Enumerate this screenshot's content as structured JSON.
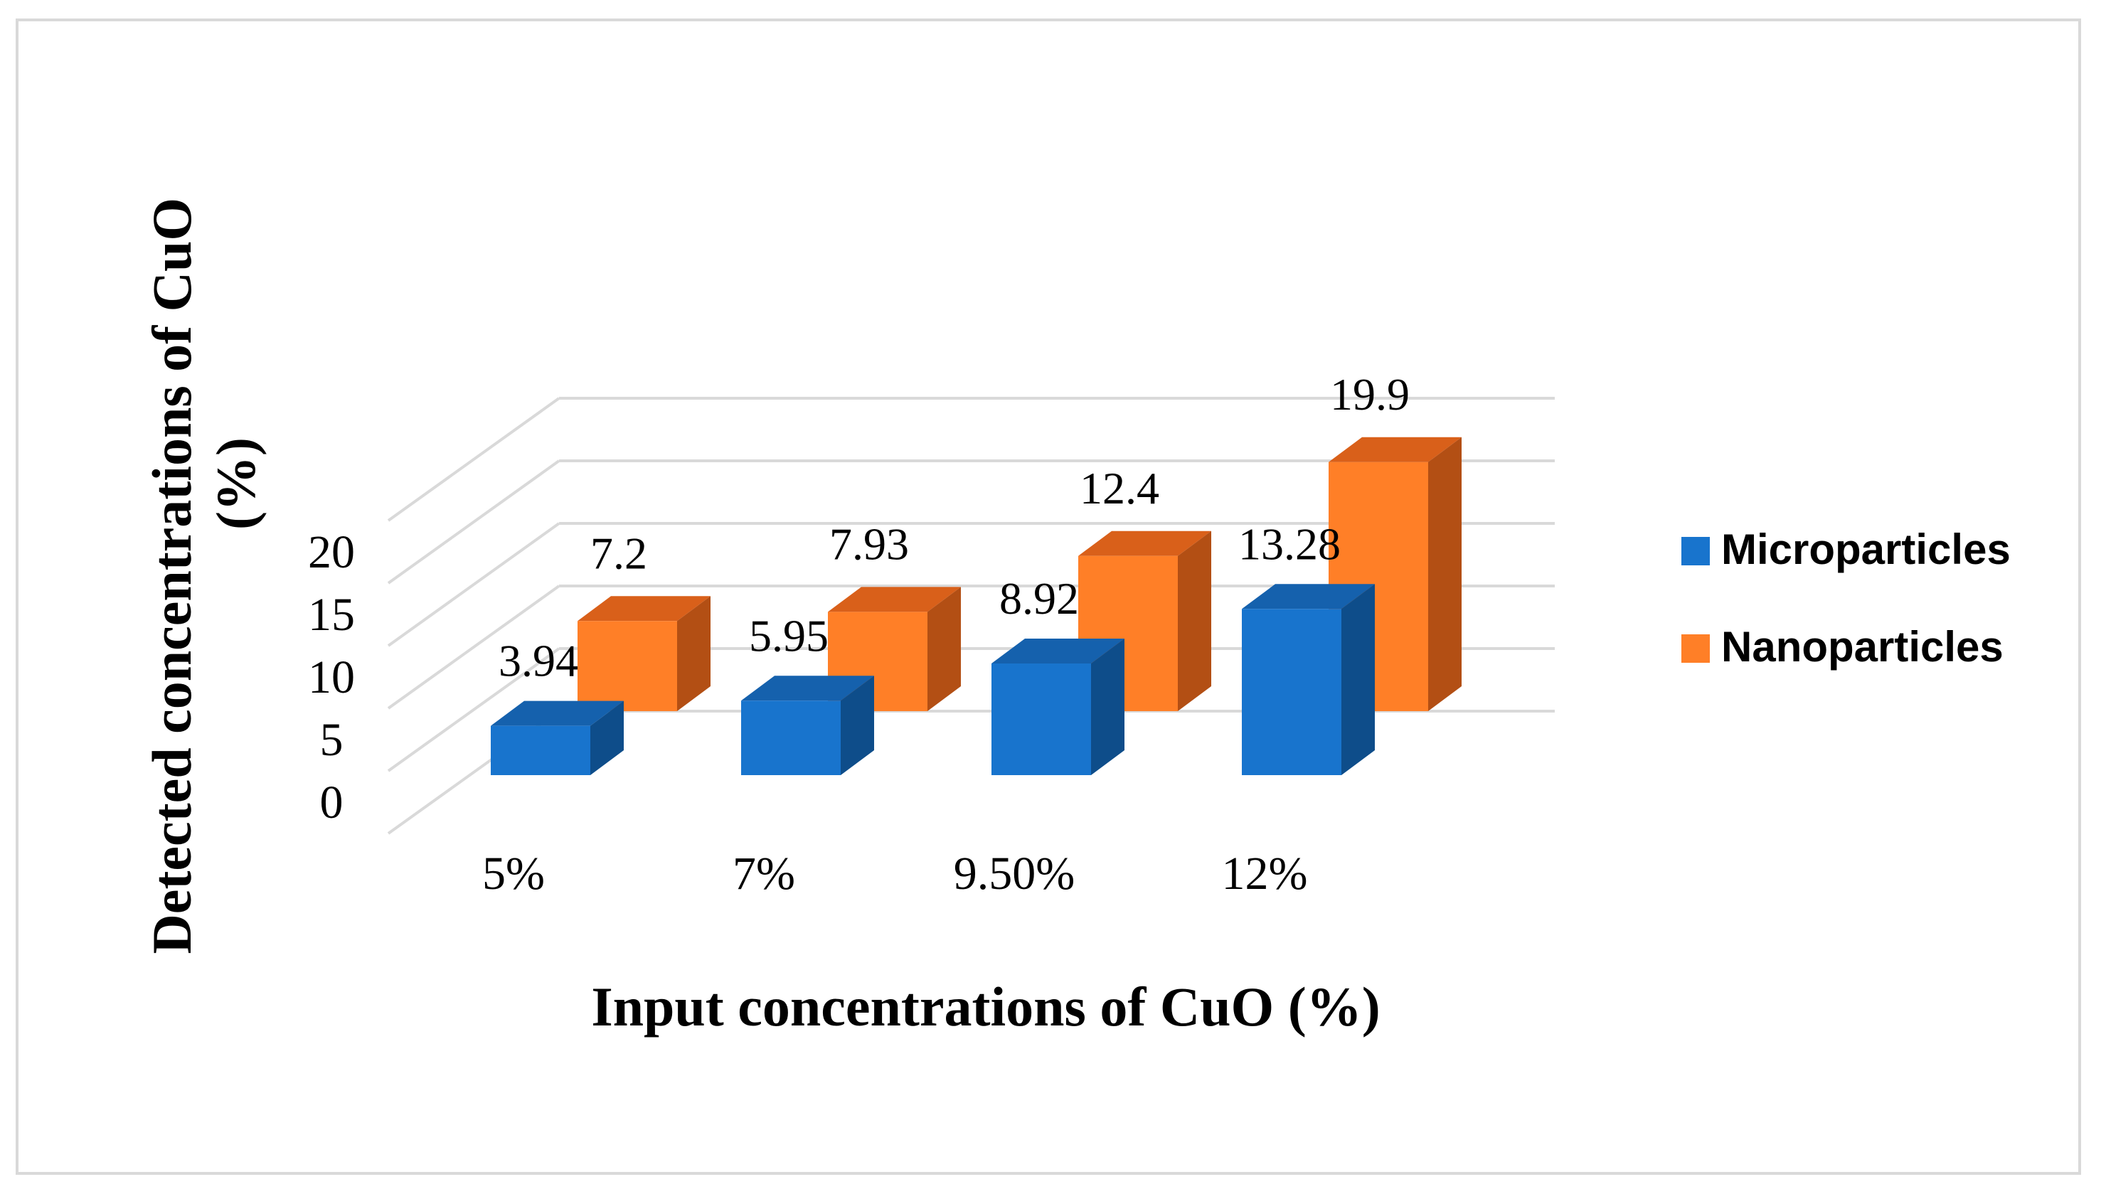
{
  "chart_data": {
    "type": "bar",
    "style": "3d-clustered-column",
    "title": "",
    "xlabel": "Input concentrations of CuO (%)",
    "ylabel": "Detected concentrations of CuO (%)",
    "categories": [
      "5%",
      "7%",
      "9.50%",
      "12%"
    ],
    "ylim": [
      0,
      25
    ],
    "yticks": [
      0,
      5,
      10,
      15,
      20
    ],
    "grid": true,
    "legend_position": "right",
    "series": [
      {
        "name": "Microparticles",
        "color": "#1874CD",
        "values": [
          3.94,
          5.95,
          8.92,
          13.28
        ],
        "labels": [
          "3.94",
          "5.95",
          "8.92",
          "13.28"
        ]
      },
      {
        "name": "Nanoparticles",
        "color": "#FF7F27",
        "values": [
          7.2,
          7.93,
          12.4,
          19.9
        ],
        "labels": [
          "7.2",
          "7.93",
          "12.4",
          "19.9"
        ]
      }
    ]
  },
  "colors": {
    "micro_front": "#1874CD",
    "micro_top": "#1561AD",
    "micro_side": "#0E4D8A",
    "nano_front": "#FF7F27",
    "nano_top": "#D9601A",
    "nano_side": "#B34F14",
    "grid": "#d9d9d9",
    "text": "#000000"
  }
}
